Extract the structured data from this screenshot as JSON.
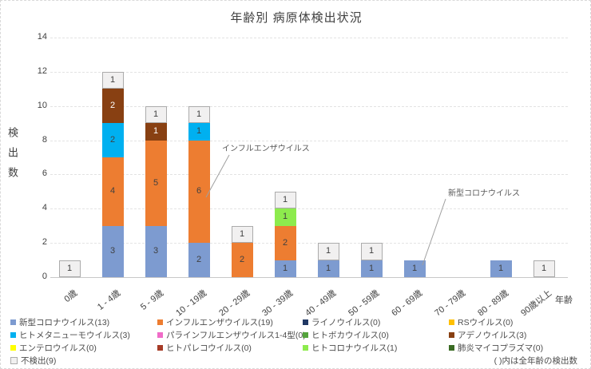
{
  "title": "年齢別 病原体検出状況",
  "chart_data": {
    "type": "bar",
    "stacked": true,
    "title": "年齢別 病原体検出状況",
    "xlabel": "年齢",
    "ylabel": "検出数",
    "ylim": [
      0,
      14
    ],
    "yticks": [
      0,
      2,
      4,
      6,
      8,
      10,
      12,
      14
    ],
    "grid": true,
    "legend_position": "bottom",
    "categories": [
      "0歳",
      "1 - 4歳",
      "5 - 9歳",
      "10 - 19歳",
      "20 - 29歳",
      "30 - 39歳",
      "40 - 49歳",
      "50 - 59歳",
      "60 - 69歳",
      "70 - 79歳",
      "80 - 89歳",
      "90歳以上"
    ],
    "series": [
      {
        "name": "新型コロナウイルス",
        "legend_label": "新型コロナウイルス(13)",
        "total": 13,
        "color": "#7d9bd0",
        "label_color": "#404040",
        "values": [
          0,
          3,
          3,
          2,
          0,
          1,
          1,
          1,
          1,
          0,
          1,
          0
        ]
      },
      {
        "name": "インフルエンザウイルス",
        "legend_label": "インフルエンザウイルス(19)",
        "total": 19,
        "color": "#ed7d31",
        "label_color": "#404040",
        "values": [
          0,
          4,
          5,
          6,
          2,
          2,
          0,
          0,
          0,
          0,
          0,
          0
        ]
      },
      {
        "name": "ライノウイルス",
        "legend_label": "ライノウイルス(0)",
        "total": 0,
        "color": "#203864",
        "label_color": "#ffffff",
        "values": [
          0,
          0,
          0,
          0,
          0,
          0,
          0,
          0,
          0,
          0,
          0,
          0
        ]
      },
      {
        "name": "RSウイルス",
        "legend_label": "RSウイルス(0)",
        "total": 0,
        "color": "#ffc000",
        "label_color": "#404040",
        "values": [
          0,
          0,
          0,
          0,
          0,
          0,
          0,
          0,
          0,
          0,
          0,
          0
        ]
      },
      {
        "name": "ヒトメタニューモウイルス",
        "legend_label": "ヒトメタニューモウイルス(3)",
        "total": 3,
        "color": "#00b0f0",
        "label_color": "#404040",
        "values": [
          0,
          2,
          0,
          1,
          0,
          0,
          0,
          0,
          0,
          0,
          0,
          0
        ]
      },
      {
        "name": "パラインフルエンザウイルス1-4型",
        "legend_label": "パラインフルエンザウイルス1-4型(0)",
        "total": 0,
        "color": "#f06cc8",
        "label_color": "#404040",
        "values": [
          0,
          0,
          0,
          0,
          0,
          0,
          0,
          0,
          0,
          0,
          0,
          0
        ]
      },
      {
        "name": "ヒトボカウイルス",
        "legend_label": "ヒトボカウイルス(0)",
        "total": 0,
        "color": "#54a33c",
        "label_color": "#ffffff",
        "values": [
          0,
          0,
          0,
          0,
          0,
          0,
          0,
          0,
          0,
          0,
          0,
          0
        ]
      },
      {
        "name": "アデノウイルス",
        "legend_label": "アデノウイルス(3)",
        "total": 3,
        "color": "#884012",
        "label_color": "#ffffff",
        "values": [
          0,
          2,
          1,
          0,
          0,
          0,
          0,
          0,
          0,
          0,
          0,
          0
        ]
      },
      {
        "name": "エンテロウイルス",
        "legend_label": "エンテロウイルス(0)",
        "total": 0,
        "color": "#ffff00",
        "label_color": "#404040",
        "values": [
          0,
          0,
          0,
          0,
          0,
          0,
          0,
          0,
          0,
          0,
          0,
          0
        ]
      },
      {
        "name": "ヒトパレコウイルス",
        "legend_label": "ヒトパレコウイルス(0)",
        "total": 0,
        "color": "#a63b26",
        "label_color": "#ffffff",
        "values": [
          0,
          0,
          0,
          0,
          0,
          0,
          0,
          0,
          0,
          0,
          0,
          0
        ]
      },
      {
        "name": "ヒトコロナウイルス",
        "legend_label": "ヒトコロナウイルス(1)",
        "total": 1,
        "color": "#8deb4d",
        "label_color": "#404040",
        "values": [
          0,
          0,
          0,
          0,
          0,
          1,
          0,
          0,
          0,
          0,
          0,
          0
        ]
      },
      {
        "name": "肺炎マイコプラズマ",
        "legend_label": "肺炎マイコプラズマ(0)",
        "total": 0,
        "color": "#3a6b23",
        "label_color": "#ffffff",
        "values": [
          0,
          0,
          0,
          0,
          0,
          0,
          0,
          0,
          0,
          0,
          0,
          0
        ]
      },
      {
        "name": "不検出",
        "legend_label": "不検出(9)",
        "total": 9,
        "color": "#f1f0f0",
        "border": "#ababab",
        "label_color": "#404040",
        "values": [
          1,
          1,
          1,
          1,
          1,
          1,
          1,
          1,
          0,
          0,
          0,
          1
        ]
      }
    ],
    "annotations": [
      {
        "text": "インフルエンザウイルス",
        "target_category": "10 - 19歳",
        "target_series": "インフルエンザウイルス"
      },
      {
        "text": "新型コロナウイルス",
        "target_category": "60 - 69歳",
        "target_series": "新型コロナウイルス"
      }
    ],
    "legend_note": "( )内は全年齢の検出数"
  }
}
